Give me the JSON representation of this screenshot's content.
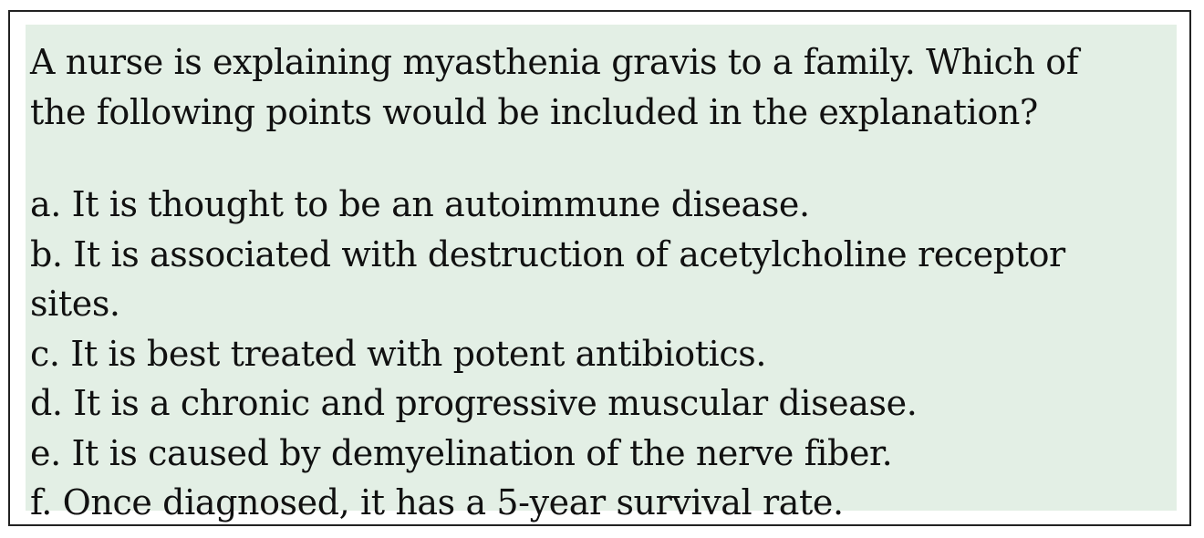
{
  "question": {
    "line1": "A nurse is explaining myasthenia gravis to a family. Which of",
    "line2": "the following points would be included in the explanation?"
  },
  "options": {
    "a": "a. It is thought to be an autoimmune disease.",
    "b_line1": "b. It is associated with destruction of acetylcholine receptor",
    "b_line2": "sites.",
    "c": "c. It is best treated with potent antibiotics.",
    "d": "d. It is a chronic and progressive muscular disease.",
    "e": "e. It is caused by demyelination of the nerve fiber.",
    "f": "f. Once diagnosed, it has a 5-year survival rate."
  }
}
